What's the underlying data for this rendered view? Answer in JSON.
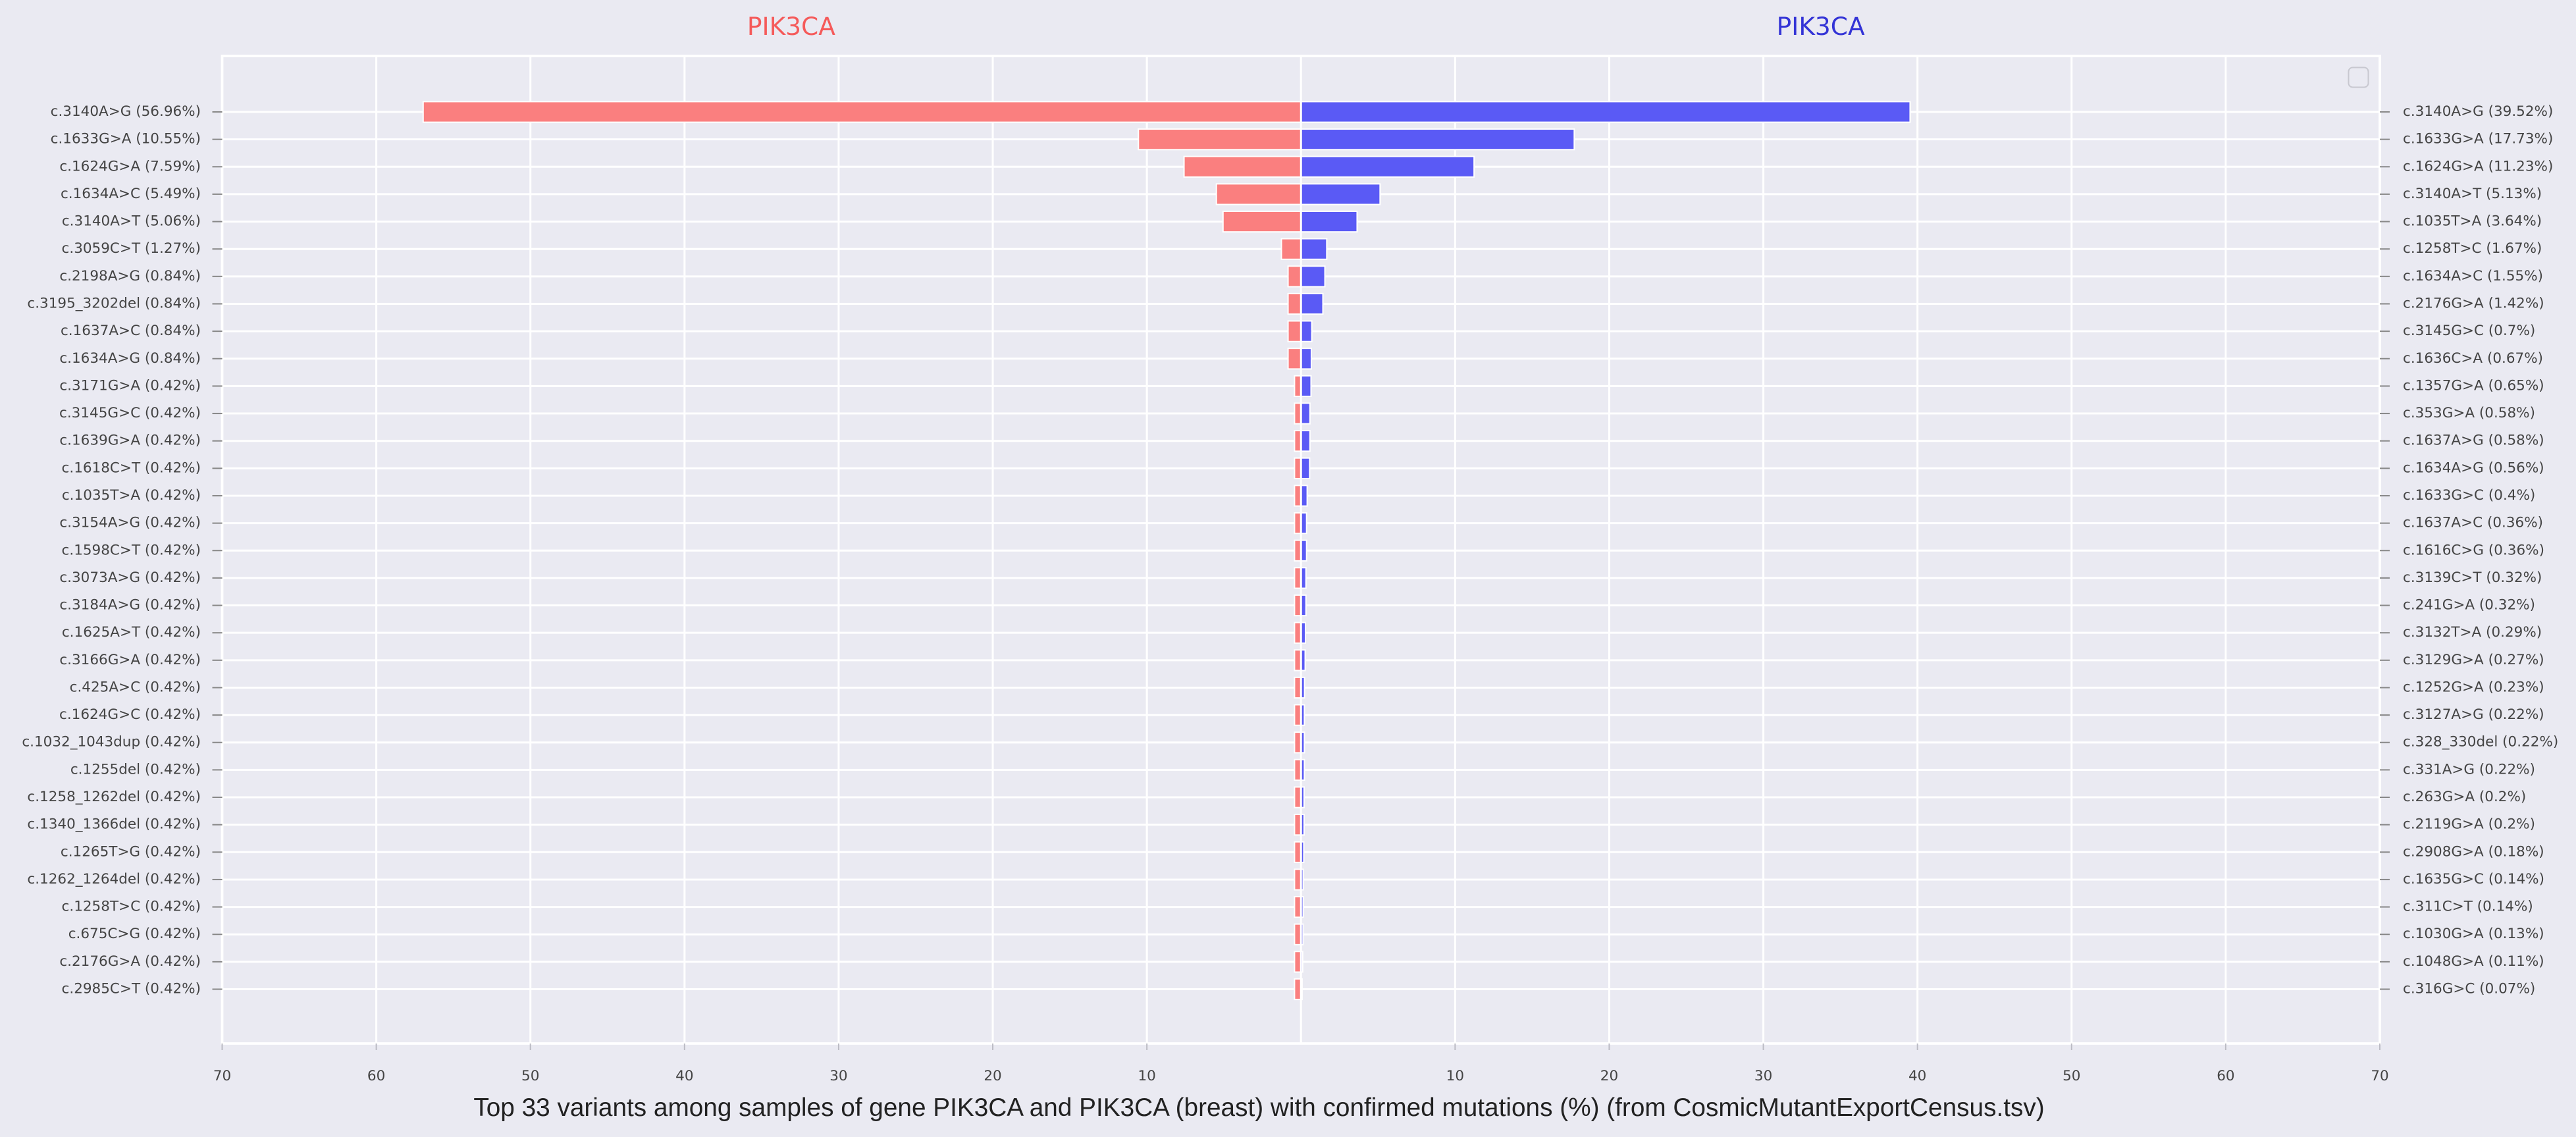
{
  "caption": "Top 33 variants among samples of gene PIK3CA and PIK3CA (breast) with confirmed mutations (%) (from CosmicMutantExportCensus.tsv)",
  "chart_data": [
    {
      "type": "barh",
      "title": "PIK3CA",
      "title_color": "#f55a5a",
      "color": "#fa7f7f",
      "x_inverted": true,
      "grid": true,
      "xlim": [
        0,
        70
      ],
      "xticks": [
        10,
        20,
        30,
        40,
        50,
        60,
        70
      ],
      "categories": [
        "c.3140A>G (56.96%)",
        "c.1633G>A (10.55%)",
        "c.1624G>A (7.59%)",
        "c.1634A>C (5.49%)",
        "c.3140A>T (5.06%)",
        "c.3059C>T (1.27%)",
        "c.2198A>G (0.84%)",
        "c.3195_3202del (0.84%)",
        "c.1637A>C (0.84%)",
        "c.1634A>G (0.84%)",
        "c.3171G>A (0.42%)",
        "c.3145G>C (0.42%)",
        "c.1639G>A (0.42%)",
        "c.1618C>T (0.42%)",
        "c.1035T>A (0.42%)",
        "c.3154A>G (0.42%)",
        "c.1598C>T (0.42%)",
        "c.3073A>G (0.42%)",
        "c.3184A>G (0.42%)",
        "c.1625A>T (0.42%)",
        "c.3166G>A (0.42%)",
        "c.425A>C (0.42%)",
        "c.1624G>C (0.42%)",
        "c.1032_1043dup (0.42%)",
        "c.1255del (0.42%)",
        "c.1258_1262del (0.42%)",
        "c.1340_1366del (0.42%)",
        "c.1265T>G (0.42%)",
        "c.1262_1264del (0.42%)",
        "c.1258T>C (0.42%)",
        "c.675C>G (0.42%)",
        "c.2176G>A (0.42%)",
        "c.2985C>T (0.42%)"
      ],
      "values": [
        56.96,
        10.55,
        7.59,
        5.49,
        5.06,
        1.27,
        0.84,
        0.84,
        0.84,
        0.84,
        0.42,
        0.42,
        0.42,
        0.42,
        0.42,
        0.42,
        0.42,
        0.42,
        0.42,
        0.42,
        0.42,
        0.42,
        0.42,
        0.42,
        0.42,
        0.42,
        0.42,
        0.42,
        0.42,
        0.42,
        0.42,
        0.42,
        0.42
      ]
    },
    {
      "type": "barh",
      "title": "PIK3CA",
      "title_color": "#3434d6",
      "color": "#5a5af5",
      "x_inverted": false,
      "grid": true,
      "xlim": [
        0,
        70
      ],
      "xticks": [
        10,
        20,
        30,
        40,
        50,
        60,
        70
      ],
      "categories": [
        "c.3140A>G (39.52%)",
        "c.1633G>A (17.73%)",
        "c.1624G>A (11.23%)",
        "c.3140A>T (5.13%)",
        "c.1035T>A (3.64%)",
        "c.1258T>C (1.67%)",
        "c.1634A>C (1.55%)",
        "c.2176G>A (1.42%)",
        "c.3145G>C (0.7%)",
        "c.1636C>A (0.67%)",
        "c.1357G>A (0.65%)",
        "c.353G>A (0.58%)",
        "c.1637A>G (0.58%)",
        "c.1634A>G (0.56%)",
        "c.1633G>C (0.4%)",
        "c.1637A>C (0.36%)",
        "c.1616C>G (0.36%)",
        "c.3139C>T (0.32%)",
        "c.241G>A (0.32%)",
        "c.3132T>A (0.29%)",
        "c.3129G>A (0.27%)",
        "c.1252G>A (0.23%)",
        "c.3127A>G (0.22%)",
        "c.328_330del (0.22%)",
        "c.331A>G (0.22%)",
        "c.263G>A (0.2%)",
        "c.2119G>A (0.2%)",
        "c.2908G>A (0.18%)",
        "c.1635G>C (0.14%)",
        "c.311C>T (0.14%)",
        "c.1030G>A (0.13%)",
        "c.1048G>A (0.11%)",
        "c.316G>C (0.07%)"
      ],
      "values": [
        39.52,
        17.73,
        11.23,
        5.13,
        3.64,
        1.67,
        1.55,
        1.42,
        0.7,
        0.67,
        0.65,
        0.58,
        0.58,
        0.56,
        0.4,
        0.36,
        0.36,
        0.32,
        0.32,
        0.29,
        0.27,
        0.23,
        0.22,
        0.22,
        0.22,
        0.2,
        0.2,
        0.18,
        0.14,
        0.14,
        0.13,
        0.11,
        0.07
      ]
    }
  ]
}
